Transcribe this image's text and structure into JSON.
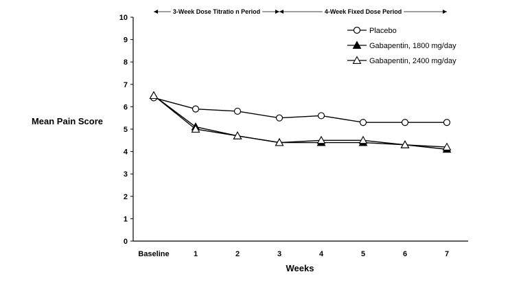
{
  "chart_data": {
    "type": "line",
    "ylabel": "Mean Pain Score",
    "xlabel": "Weeks",
    "ylim": [
      0,
      10
    ],
    "yticks": [
      "0",
      "1",
      "2",
      "3",
      "4",
      "5",
      "6",
      "7",
      "8",
      "9",
      "10"
    ],
    "categories": [
      "Baseline",
      "1",
      "2",
      "3",
      "4",
      "5",
      "6",
      "7"
    ],
    "periods": [
      {
        "label": "3-Week Dose Titratio n Period"
      },
      {
        "label": "4-Week Fixed Dose Period"
      }
    ],
    "legend_position": "top-right",
    "series": [
      {
        "name": "Placebo",
        "marker": "open-circle",
        "color": "#000000",
        "values": [
          6.4,
          5.9,
          5.8,
          5.5,
          5.6,
          5.3,
          5.3,
          5.3
        ]
      },
      {
        "name": "Gabapentin, 1800 mg/day",
        "marker": "filled-triangle",
        "color": "#000000",
        "values": [
          6.5,
          5.1,
          4.7,
          4.4,
          4.4,
          4.4,
          4.3,
          4.1
        ]
      },
      {
        "name": "Gabapentin, 2400 mg/day",
        "marker": "open-triangle",
        "color": "#000000",
        "values": [
          6.5,
          5.0,
          4.7,
          4.4,
          4.5,
          4.5,
          4.3,
          4.2
        ]
      }
    ]
  }
}
